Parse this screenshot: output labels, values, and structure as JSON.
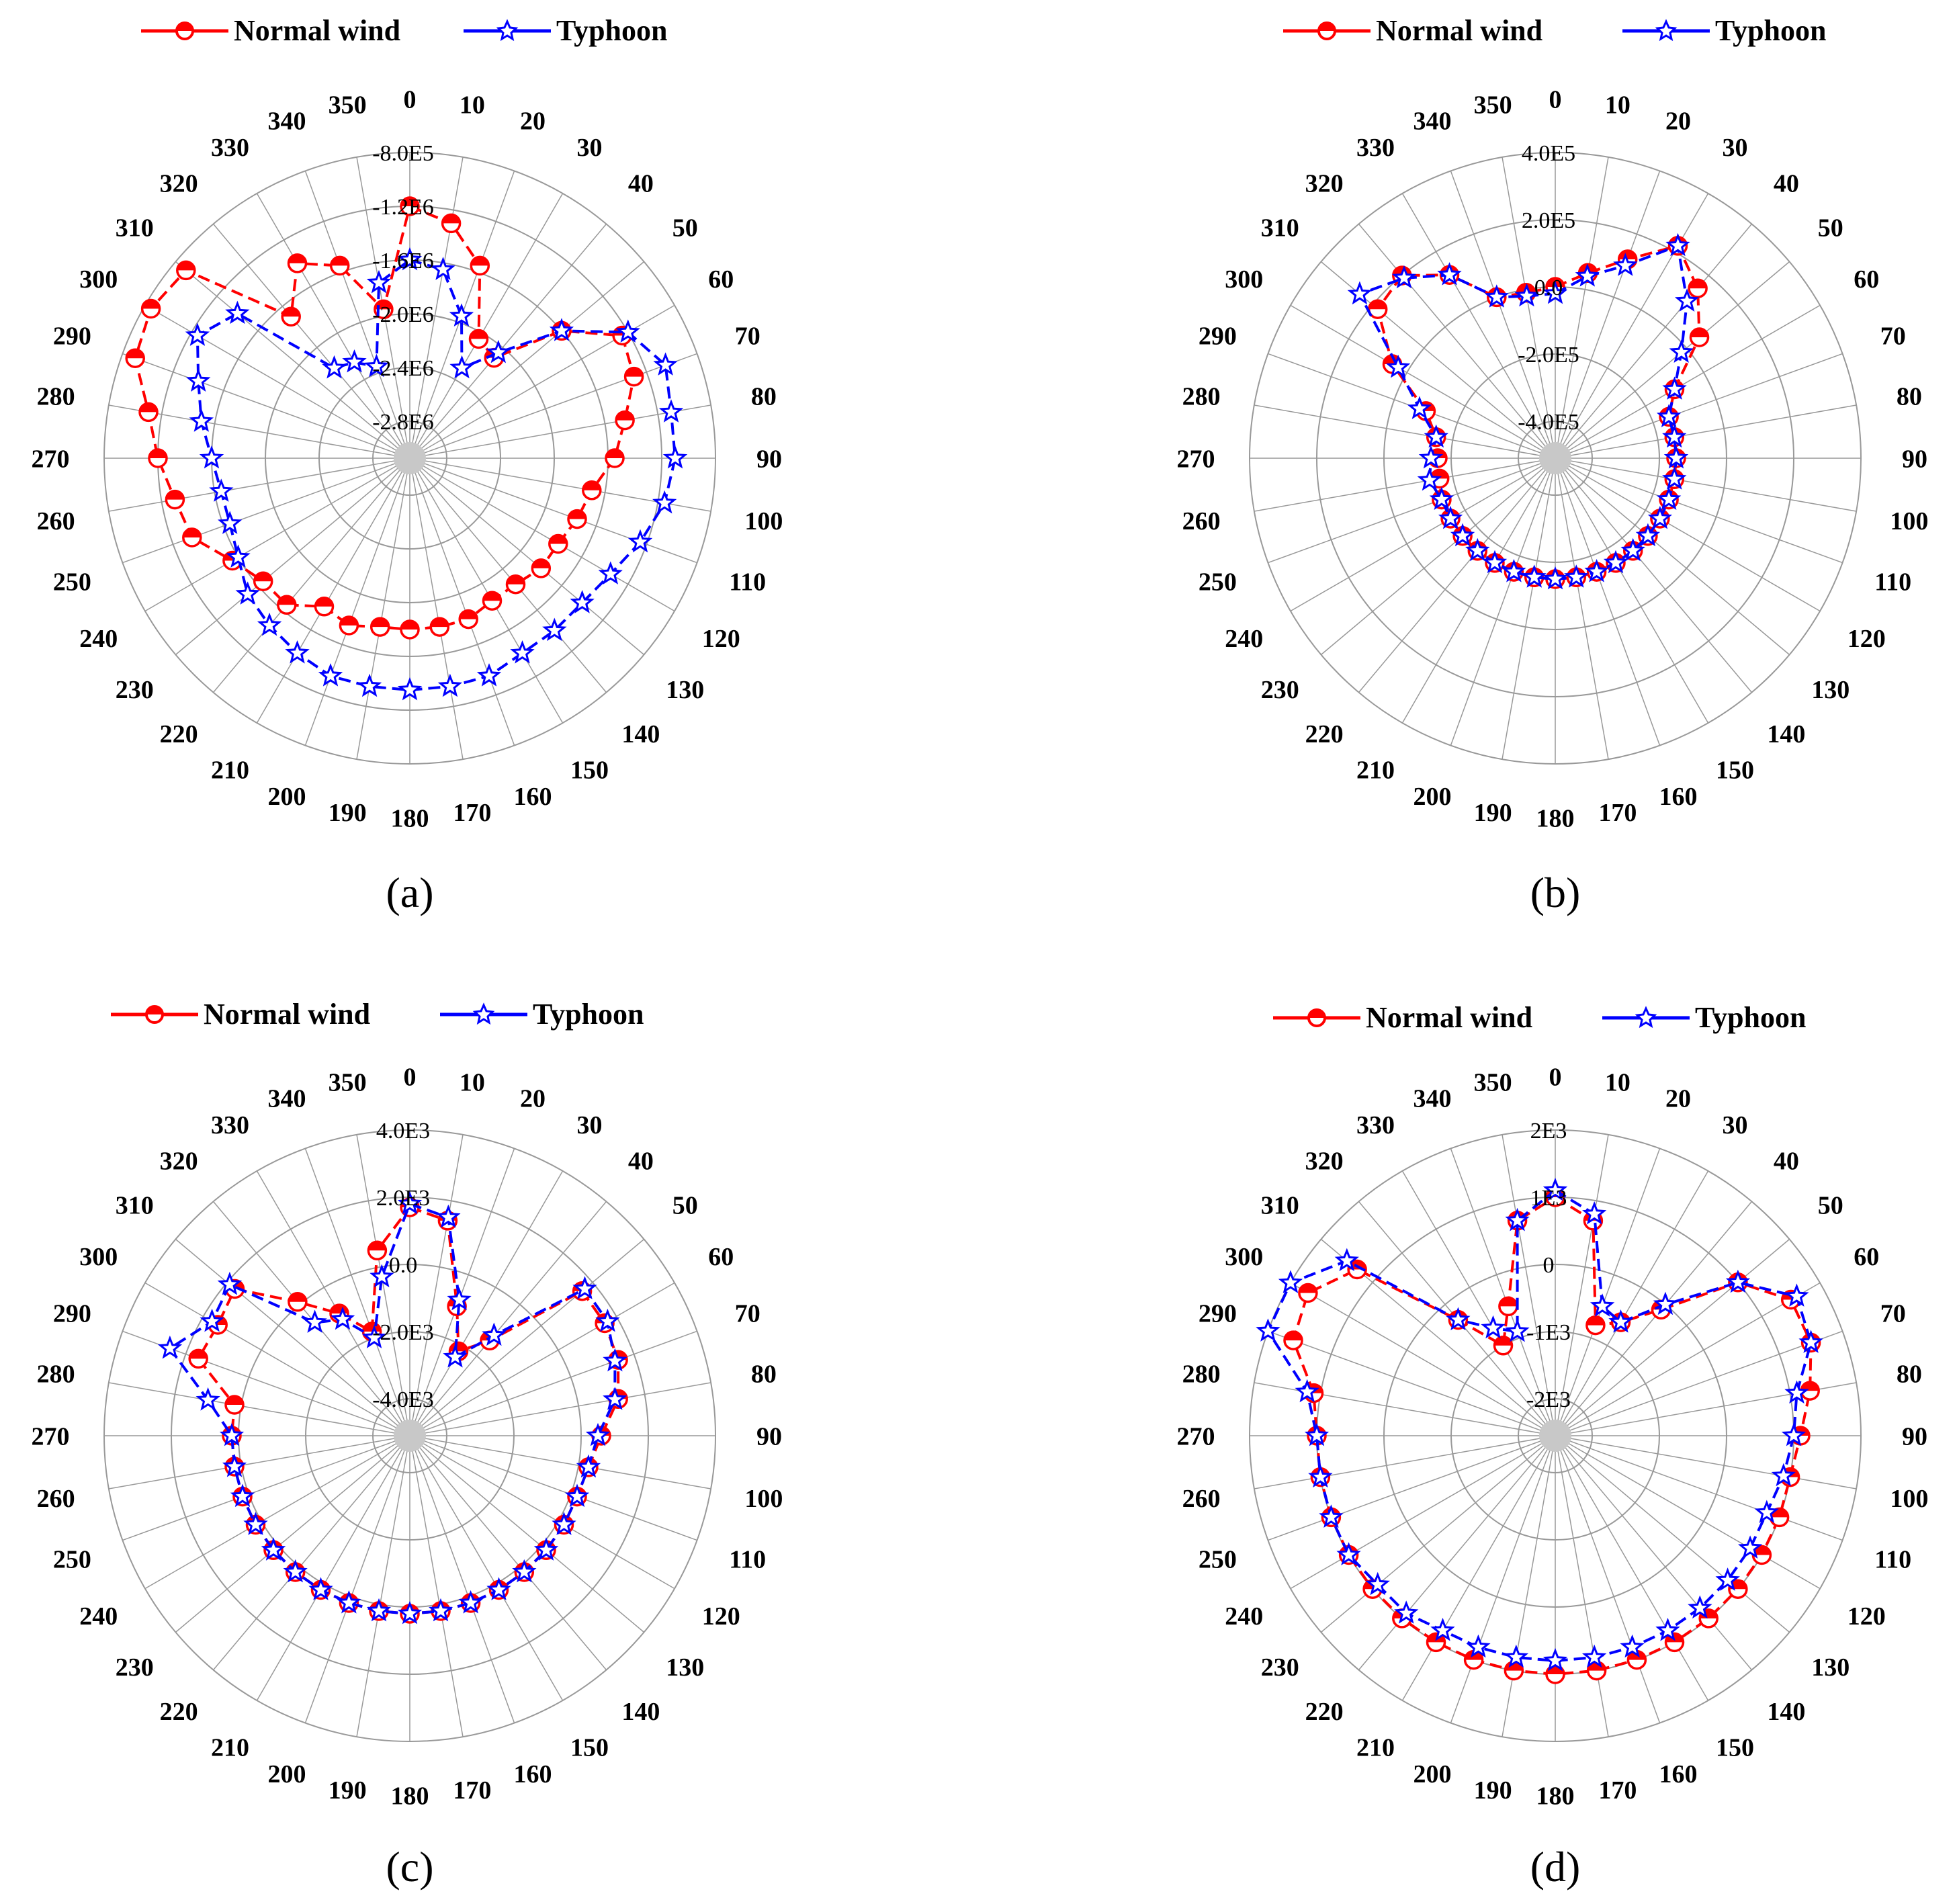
{
  "figure": {
    "theme": {
      "normal_color": "#ff0000",
      "typhoon_color": "#0000ff",
      "grid_color": "#999999"
    },
    "legend": {
      "normal_label": "Normal wind",
      "typhoon_label": "Typhoon",
      "normal_marker": "half-filled-circle",
      "typhoon_marker": "star-outline"
    }
  },
  "chart_data": [
    {
      "type": "polar-line",
      "panel_label": "(a)",
      "angle_labels": [
        "0",
        "10",
        "20",
        "30",
        "40",
        "50",
        "60",
        "70",
        "80",
        "90",
        "100",
        "110",
        "120",
        "130",
        "140",
        "150",
        "160",
        "170",
        "180",
        "190",
        "200",
        "210",
        "220",
        "230",
        "240",
        "250",
        "260",
        "270",
        "280",
        "290",
        "300",
        "310",
        "320",
        "330",
        "340",
        "350"
      ],
      "radial_ticks": [
        "-8.0E5",
        "-1.2E6",
        "-1.6E6",
        "-2.0E6",
        "-2.4E6",
        "-2.8E6"
      ],
      "radial_tick_values": [
        -800000,
        -1200000,
        -1600000,
        -2000000,
        -2400000,
        -2800000
      ],
      "series": [
        {
          "name": "Normal wind",
          "values": [
            -1200000,
            -1300000,
            -1550000,
            -2050000,
            -2100000,
            -1600000,
            -1250000,
            -1300000,
            -1450000,
            -1550000,
            -1700000,
            -1750000,
            -1800000,
            -1800000,
            -1850000,
            -1850000,
            -1800000,
            -1800000,
            -1800000,
            -1800000,
            -1750000,
            -1800000,
            -1650000,
            -1650000,
            -1550000,
            -1350000,
            -1300000,
            -1200000,
            -1100000,
            -900000,
            -850000,
            -900000,
            -1700000,
            -1400000,
            -1550000,
            -1950000
          ]
        },
        {
          "name": "Typhoon",
          "values": [
            -1600000,
            -1650000,
            -1950000,
            -2300000,
            -2050000,
            -1600000,
            -1200000,
            -1050000,
            -1100000,
            -1100000,
            -1150000,
            -1250000,
            -1350000,
            -1400000,
            -1400000,
            -1400000,
            -1350000,
            -1350000,
            -1350000,
            -1350000,
            -1350000,
            -1400000,
            -1450000,
            -1500000,
            -1600000,
            -1650000,
            -1650000,
            -1600000,
            -1500000,
            -1400000,
            -1250000,
            -1400000,
            -2200000,
            -2250000,
            -2350000,
            -1750000
          ]
        }
      ]
    },
    {
      "type": "polar-line",
      "panel_label": "(b)",
      "angle_labels": [
        "0",
        "10",
        "20",
        "30",
        "40",
        "50",
        "60",
        "70",
        "80",
        "90",
        "100",
        "110",
        "120",
        "130",
        "140",
        "150",
        "160",
        "170",
        "180",
        "190",
        "200",
        "210",
        "220",
        "230",
        "240",
        "250",
        "260",
        "270",
        "280",
        "290",
        "300",
        "310",
        "320",
        "330",
        "340",
        "350"
      ],
      "radial_ticks": [
        "4.0E5",
        "2.0E5",
        "0.0",
        "-2.0E5",
        "-4.0E5"
      ],
      "radial_tick_values": [
        400000,
        200000,
        0,
        -200000,
        -400000
      ],
      "series": [
        {
          "name": "Normal wind",
          "values": [
            0,
            50000,
            120000,
            220000,
            150000,
            50000,
            -100000,
            -150000,
            -150000,
            -150000,
            -150000,
            -150000,
            -150000,
            -150000,
            -150000,
            -150000,
            -150000,
            -150000,
            -150000,
            -150000,
            -150000,
            -150000,
            -150000,
            -150000,
            -150000,
            -150000,
            -160000,
            -160000,
            -150000,
            -100000,
            50000,
            180000,
            200000,
            120000,
            0,
            -10000
          ]
        },
        {
          "name": "Typhoon",
          "values": [
            -20000,
            40000,
            100000,
            220000,
            100000,
            -20000,
            -100000,
            -150000,
            -150000,
            -150000,
            -150000,
            -150000,
            -150000,
            -150000,
            -150000,
            -150000,
            -150000,
            -150000,
            -150000,
            -150000,
            -150000,
            -150000,
            -150000,
            -150000,
            -150000,
            -150000,
            -130000,
            -140000,
            -150000,
            -80000,
            30000,
            250000,
            190000,
            120000,
            0,
            -20000
          ]
        }
      ]
    },
    {
      "type": "polar-line",
      "panel_label": "(c)",
      "angle_labels": [
        "0",
        "10",
        "20",
        "30",
        "40",
        "50",
        "60",
        "70",
        "80",
        "90",
        "100",
        "110",
        "120",
        "130",
        "140",
        "150",
        "160",
        "170",
        "180",
        "190",
        "200",
        "210",
        "220",
        "230",
        "240",
        "250",
        "260",
        "270",
        "280",
        "290",
        "300",
        "310",
        "320",
        "330",
        "340",
        "350"
      ],
      "radial_ticks": [
        "4.0E3",
        "2.0E3",
        "0.0",
        "-2.0E3",
        "-4.0E3"
      ],
      "radial_tick_values": [
        4000,
        2000,
        0,
        -2000,
        -4000
      ],
      "series": [
        {
          "name": "Normal wind",
          "values": [
            1700,
            1400,
            -1000,
            -2200,
            -1400,
            1600,
            1600,
            1500,
            1200,
            600,
            300,
            200,
            200,
            200,
            200,
            200,
            200,
            200,
            200,
            200,
            200,
            200,
            200,
            200,
            200,
            200,
            200,
            200,
            200,
            1600,
            1500,
            1700,
            100,
            -900,
            -1800,
            500
          ]
        },
        {
          "name": "Typhoon",
          "values": [
            1800,
            1500,
            -800,
            -2400,
            -1200,
            1700,
            1700,
            1400,
            1100,
            500,
            300,
            200,
            200,
            200,
            200,
            200,
            200,
            200,
            200,
            200,
            200,
            200,
            200,
            200,
            200,
            200,
            200,
            200,
            1000,
            2500,
            1700,
            1900,
            -700,
            -1100,
            -2000,
            -300
          ]
        }
      ]
    },
    {
      "type": "polar-line",
      "panel_label": "(d)",
      "angle_labels": [
        "0",
        "10",
        "20",
        "30",
        "40",
        "50",
        "60",
        "70",
        "80",
        "90",
        "100",
        "110",
        "120",
        "130",
        "140",
        "150",
        "160",
        "170",
        "180",
        "190",
        "200",
        "210",
        "220",
        "230",
        "240",
        "250",
        "260",
        "270",
        "280",
        "290",
        "300",
        "310",
        "320",
        "330",
        "340",
        "350"
      ],
      "radial_ticks": [
        "2E3",
        "1E3",
        "0",
        "-1E3",
        "-2E3"
      ],
      "radial_tick_values": [
        2000,
        1000,
        0,
        -1000,
        -2000
      ],
      "series": [
        {
          "name": "Normal wind",
          "values": [
            1000,
            700,
            -800,
            -600,
            -100,
            1000,
            1500,
            1500,
            1300,
            1100,
            1000,
            1000,
            1000,
            1000,
            1000,
            1000,
            1000,
            1000,
            1000,
            1000,
            1000,
            1000,
            1000,
            1000,
            1000,
            1000,
            1000,
            1000,
            1100,
            1600,
            1700,
            1300,
            -300,
            -1000,
            -500,
            700
          ]
        },
        {
          "name": "Typhoon",
          "values": [
            1100,
            800,
            -500,
            -600,
            0,
            1000,
            1600,
            1500,
            1100,
            1000,
            900,
            800,
            800,
            800,
            800,
            800,
            800,
            800,
            800,
            800,
            800,
            800,
            900,
            900,
            1000,
            1000,
            1000,
            1000,
            1200,
            2000,
            2000,
            1500,
            -300,
            -700,
            -900,
            700
          ]
        }
      ]
    }
  ]
}
